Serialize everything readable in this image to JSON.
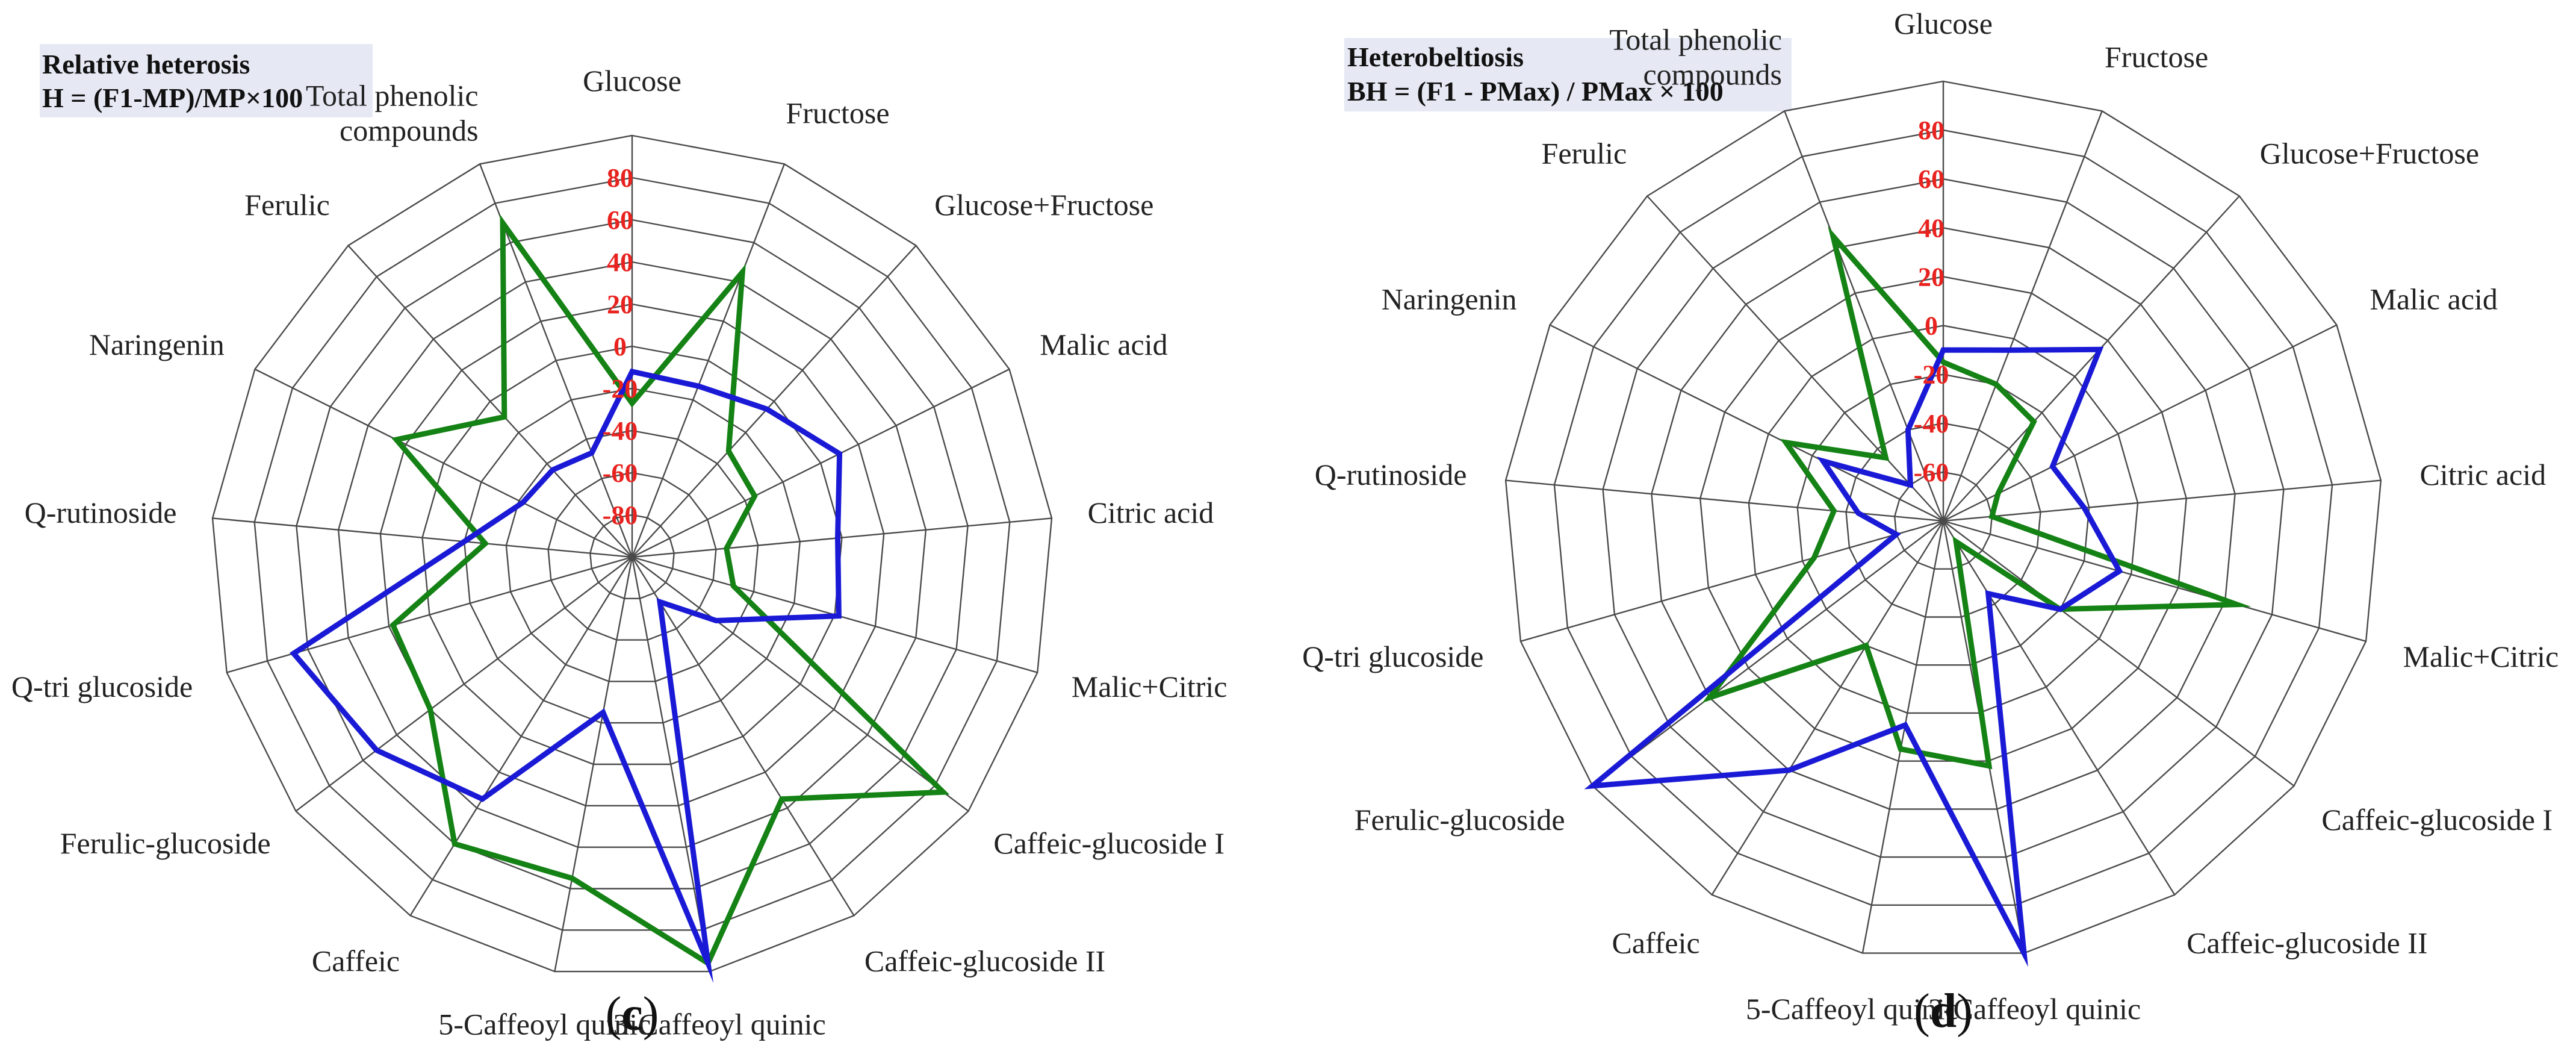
{
  "colors": {
    "green_series": "#148214",
    "blue_series": "#1a1ad6",
    "tick_label": "#e8231f",
    "title_box": "#e6e9f4",
    "grid": "#4a4a4a"
  },
  "chart_data": [
    {
      "type": "radar",
      "panel_label": "c",
      "title": "Relative heterosis",
      "subtitle": "H = (F1-MP)/MP×100",
      "rlim": [
        -100,
        100
      ],
      "ticks": [
        -80,
        -60,
        -40,
        -20,
        0,
        20,
        40,
        60,
        80
      ],
      "tick_labels": [
        "-80",
        "-60",
        "-40",
        "-20",
        "0",
        "20",
        "40",
        "60",
        "80"
      ],
      "grid": true,
      "categories": [
        "Glucose",
        "Fructose",
        "Glucose+Fructose",
        "Malic acid",
        "Citric acid",
        "Malic+Citric",
        "Caffeic-glucoside I",
        "Caffeic-glucoside II",
        "3-Caffeoyl quinic",
        "5-Caffeoyl quinic",
        "Caffeic",
        "Ferulic-glucoside",
        "Q-tri glucoside",
        "Q-rutinoside",
        "Naringenin",
        "Ferulic",
        "Total phenolic compounds"
      ],
      "category_display": [
        [
          "Glucose"
        ],
        [
          "Fructose"
        ],
        [
          "Glucose+Fructose"
        ],
        [
          "Malic acid"
        ],
        [
          "Citric acid"
        ],
        [
          "Malic+Citric"
        ],
        [
          "Caffeic-glucoside I"
        ],
        [
          "Caffeic-glucoside II"
        ],
        [
          "3-Caffeoyl quinic"
        ],
        [
          "5-Caffeoyl quinic"
        ],
        [
          "Caffeic"
        ],
        [
          "Ferulic-glucoside"
        ],
        [
          "Q-tri glucoside"
        ],
        [
          "Q-rutinoside"
        ],
        [
          "Naringenin"
        ],
        [
          "Ferulic"
        ],
        [
          "Total phenolic",
          "compounds"
        ]
      ],
      "series": [
        {
          "color": "#148214",
          "values": [
            -27,
            45,
            -32,
            -35,
            -55,
            -50,
            85,
            35,
            96,
            55,
            60,
            20,
            18,
            -30,
            25,
            -10,
            70
          ]
        },
        {
          "color": "#1a1ad6",
          "values": [
            -12,
            -13,
            -5,
            10,
            -2,
            2,
            -50,
            -75,
            96,
            -25,
            35,
            52,
            67,
            -20,
            -42,
            -44,
            -47
          ]
        }
      ]
    },
    {
      "type": "radar",
      "panel_label": "d",
      "title": "Heterobeltiosis",
      "subtitle": "BH = (F1 - PMax) / PMax × 100",
      "rlim": [
        -80,
        100
      ],
      "ticks": [
        -60,
        -40,
        -20,
        0,
        20,
        40,
        60,
        80
      ],
      "tick_labels": [
        "-60",
        "-40",
        "-20",
        "0",
        "20",
        "40",
        "60",
        "80"
      ],
      "grid": true,
      "categories": [
        "Glucose",
        "Fructose",
        "Glucose+Fructose",
        "Malic acid",
        "Citric acid",
        "Malic+Citric",
        "Caffeic-glucoside I",
        "Caffeic-glucoside II",
        "3-Caffeoyl quinic",
        "5-Caffeoyl quinic",
        "Caffeic",
        "Ferulic-glucoside",
        "Q-tri glucoside",
        "Q-rutinoside",
        "Naringenin",
        "Ferulic",
        "Total phenolic compounds"
      ],
      "category_display": [
        [
          "Glucose"
        ],
        [
          "Fructose"
        ],
        [
          "Glucose+Fructose"
        ],
        [
          "Malic acid"
        ],
        [
          "Citric acid"
        ],
        [
          "Malic+Citric"
        ],
        [
          "Caffeic-glucoside I"
        ],
        [
          "Caffeic-glucoside II"
        ],
        [
          "3-Caffeoyl quinic"
        ],
        [
          "5-Caffeoyl quinic"
        ],
        [
          "Caffeic"
        ],
        [
          "Ferulic-glucoside"
        ],
        [
          "Q-tri glucoside"
        ],
        [
          "Q-rutinoside"
        ],
        [
          "Naringenin"
        ],
        [
          "Ferulic"
        ],
        [
          "Total phenolic",
          "compounds"
        ]
      ],
      "series": [
        {
          "color": "#148214",
          "values": [
            -15,
            -20,
            -25,
            -55,
            -60,
            45,
            -20,
            -70,
            22,
            15,
            -20,
            40,
            -25,
            -35,
            -8,
            -45,
            45
          ]
        },
        {
          "color": "#1a1ad6",
          "values": [
            -10,
            -5,
            15,
            -30,
            -22,
            -5,
            -20,
            -45,
            100,
            5,
            40,
            100,
            -60,
            -45,
            -25,
            -60,
            -40
          ]
        }
      ]
    }
  ]
}
